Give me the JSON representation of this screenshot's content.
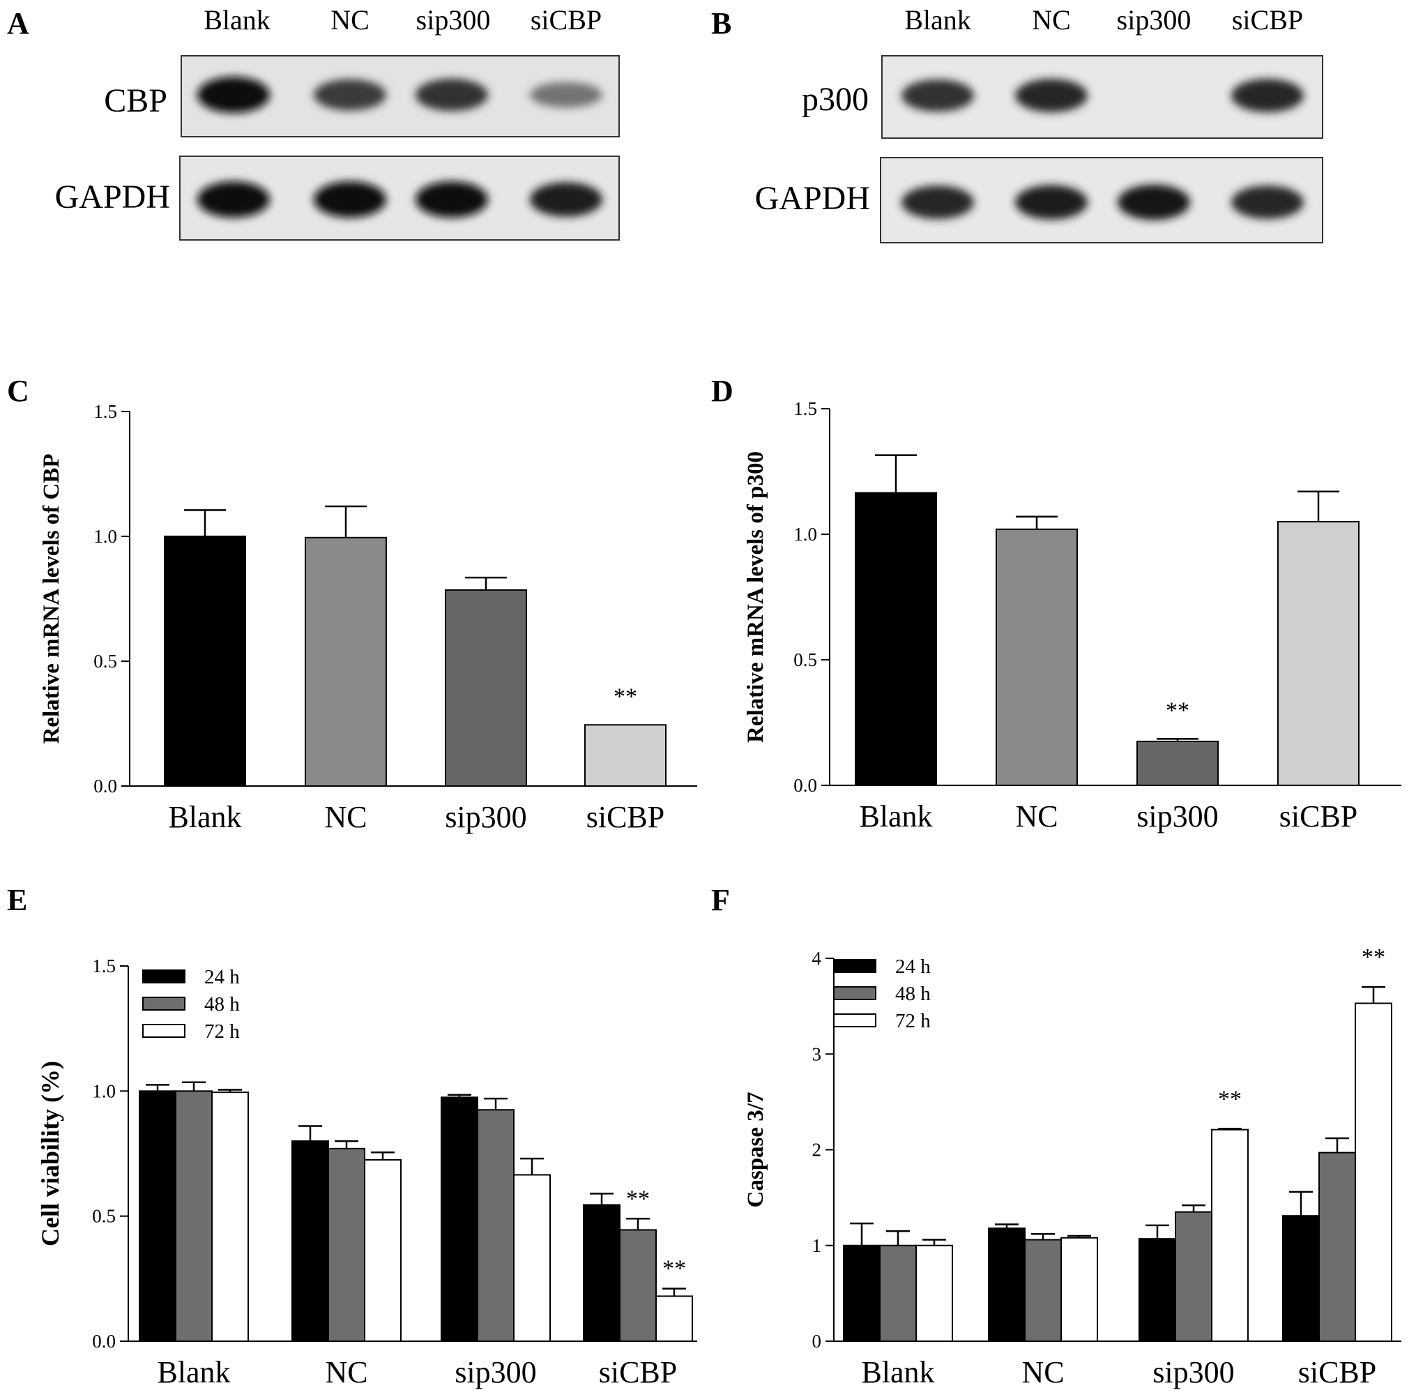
{
  "panel_letters": {
    "a": "A",
    "b": "B",
    "c": "C",
    "d": "D",
    "e": "E",
    "f": "F"
  },
  "blots": {
    "lanes": [
      "Blank",
      "NC",
      "sip300",
      "siCBP"
    ],
    "A": {
      "rows": [
        "CBP",
        "GAPDH"
      ],
      "band_intensity": [
        [
          1.0,
          0.75,
          0.8,
          0.45
        ],
        [
          1.0,
          1.0,
          1.0,
          0.9
        ]
      ]
    },
    "B": {
      "rows": [
        "p300",
        "GAPDH"
      ],
      "band_intensity": [
        [
          0.8,
          0.85,
          0.0,
          0.85
        ],
        [
          0.85,
          0.9,
          0.95,
          0.85
        ]
      ]
    }
  },
  "chart_data": [
    {
      "panel": "C",
      "type": "bar",
      "categories": [
        "Blank",
        "NC",
        "sip300",
        "siCBP"
      ],
      "values": [
        1.0,
        0.995,
        0.785,
        0.245
      ],
      "errors": [
        0.105,
        0.125,
        0.05,
        0.0
      ],
      "bar_colors": [
        "#000000",
        "#8a8a8a",
        "#666666",
        "#cfcfcf"
      ],
      "ylabel": "Relative mRNA levels of CBP",
      "ylim": [
        0,
        1.5
      ],
      "yticks": [
        "0.0",
        "0.5",
        "1.0",
        "1.5"
      ],
      "annotations": [
        {
          "category": "siCBP",
          "text": "**"
        }
      ]
    },
    {
      "panel": "D",
      "type": "bar",
      "categories": [
        "Blank",
        "NC",
        "sip300",
        "siCBP"
      ],
      "values": [
        1.165,
        1.02,
        0.175,
        1.05
      ],
      "errors": [
        0.15,
        0.05,
        0.01,
        0.12
      ],
      "bar_colors": [
        "#000000",
        "#8a8a8a",
        "#666666",
        "#cfcfcf"
      ],
      "ylabel": "Relative mRNA levels of p300",
      "ylim": [
        0,
        1.5
      ],
      "yticks": [
        "0.0",
        "0.5",
        "1.0",
        "1.5"
      ],
      "annotations": [
        {
          "category": "sip300",
          "text": "**"
        }
      ]
    },
    {
      "panel": "E",
      "type": "bar",
      "categories": [
        "Blank",
        "NC",
        "sip300",
        "siCBP"
      ],
      "series": [
        {
          "name": "24 h",
          "color": "#000000",
          "values": [
            1.0,
            0.8,
            0.975,
            0.545
          ],
          "errors": [
            0.025,
            0.06,
            0.01,
            0.045
          ]
        },
        {
          "name": "48 h",
          "color": "#6e6e6e",
          "values": [
            1.0,
            0.77,
            0.925,
            0.445
          ],
          "errors": [
            0.035,
            0.03,
            0.045,
            0.045
          ]
        },
        {
          "name": "72 h",
          "color": "#ffffff",
          "values": [
            0.995,
            0.725,
            0.665,
            0.18
          ],
          "errors": [
            0.01,
            0.03,
            0.065,
            0.03
          ]
        }
      ],
      "ylabel": "Cell viability (%)",
      "ylim": [
        0,
        1.5
      ],
      "yticks": [
        "0.0",
        "0.5",
        "1.0",
        "1.5"
      ],
      "legend": "top-left",
      "annotations": [
        {
          "category": "siCBP",
          "series": "48 h",
          "text": "**"
        },
        {
          "category": "siCBP",
          "series": "72 h",
          "text": "**"
        }
      ]
    },
    {
      "panel": "F",
      "type": "bar",
      "categories": [
        "Blank",
        "NC",
        "sip300",
        "siCBP"
      ],
      "series": [
        {
          "name": "24 h",
          "color": "#000000",
          "values": [
            1.0,
            1.18,
            1.07,
            1.31
          ],
          "errors": [
            0.23,
            0.04,
            0.14,
            0.25
          ]
        },
        {
          "name": "48 h",
          "color": "#6e6e6e",
          "values": [
            1.0,
            1.06,
            1.35,
            1.97
          ],
          "errors": [
            0.15,
            0.06,
            0.07,
            0.15
          ]
        },
        {
          "name": "72 h",
          "color": "#ffffff",
          "values": [
            1.0,
            1.08,
            2.21,
            3.53
          ],
          "errors": [
            0.06,
            0.02,
            0.01,
            0.17
          ]
        }
      ],
      "ylabel": "Caspase 3/7",
      "ylim": [
        0,
        4
      ],
      "yticks": [
        "0",
        "1",
        "2",
        "3",
        "4"
      ],
      "legend": "top-left",
      "annotations": [
        {
          "category": "sip300",
          "series": "72 h",
          "text": "**"
        },
        {
          "category": "siCBP",
          "series": "72 h",
          "text": "**"
        }
      ]
    }
  ]
}
